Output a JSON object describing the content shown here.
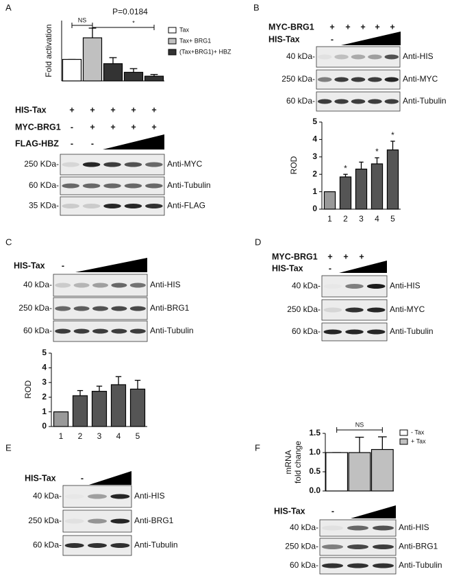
{
  "chart_data": [
    {
      "type": "bar",
      "y_label": "Fold activation",
      "categories": [
        null,
        null,
        null,
        null,
        null
      ],
      "ylim": [
        0,
        2.8
      ],
      "series": [
        {
          "name": "Tax",
          "color": "#ffffff",
          "values": [
            1,
            null,
            null,
            null,
            null
          ],
          "errors": [
            0,
            null,
            null,
            null,
            null
          ]
        },
        {
          "name": "Tax+ BRG1",
          "color": "#c0c0c0",
          "values": [
            null,
            2.0,
            null,
            null,
            null
          ],
          "errors": [
            null,
            0.45,
            null,
            null,
            null
          ]
        },
        {
          "name": "(Tax+BRG1)+ HBZ",
          "color": "#333333",
          "values": [
            null,
            null,
            0.8,
            0.4,
            0.22
          ],
          "errors": [
            null,
            null,
            0.28,
            0.17,
            0.08
          ]
        }
      ],
      "ns_label": "NS",
      "p_label": "P=0.0184",
      "sig_label": "*"
    },
    {
      "type": "bar",
      "y_label": "ROD",
      "categories": [
        "1",
        "2",
        "3",
        "4",
        "5"
      ],
      "values": [
        1,
        1.85,
        2.3,
        2.6,
        3.4
      ],
      "errors": [
        0,
        0.15,
        0.4,
        0.35,
        0.5
      ],
      "colors": [
        "#999999",
        "#555555",
        "#555555",
        "#555555",
        "#555555"
      ],
      "stars": [
        null,
        "*",
        null,
        "*",
        "*"
      ],
      "ylim": [
        0,
        5
      ],
      "yticks": [
        0,
        1,
        2,
        3,
        4,
        5
      ]
    },
    {
      "type": "bar",
      "y_label": "ROD",
      "categories": [
        "1",
        "2",
        "3",
        "4",
        "5"
      ],
      "values": [
        1,
        2.1,
        2.4,
        2.85,
        2.55
      ],
      "errors": [
        0,
        0.35,
        0.35,
        0.55,
        0.6
      ],
      "colors": [
        "#999999",
        "#555555",
        "#555555",
        "#555555",
        "#555555"
      ],
      "ylim": [
        0,
        5
      ],
      "yticks": [
        0,
        1,
        2,
        3,
        4,
        5
      ]
    },
    {
      "type": "bar",
      "y_label": [
        "mRNA",
        "fold change"
      ],
      "categories": [
        null,
        null,
        null
      ],
      "ylim": [
        0,
        1.5
      ],
      "yticks": [
        {
          "value": 0,
          "label": "0.0"
        },
        {
          "value": 0.5,
          "label": "0.5"
        },
        {
          "value": 1,
          "label": "1.0"
        },
        {
          "value": 1.5,
          "label": "1.5"
        }
      ],
      "series": [
        {
          "name": "- Tax",
          "color": "#ffffff",
          "values": [
            1,
            null,
            null
          ],
          "errors": [
            0,
            null,
            null
          ]
        },
        {
          "name": "+ Tax",
          "color": "#c0c0c0",
          "values": [
            null,
            1.0,
            1.08
          ],
          "errors": [
            null,
            0.4,
            0.33
          ]
        }
      ],
      "ns_label": "NS"
    }
  ],
  "panels": [
    {
      "letter": "A",
      "rows": [
        {
          "label": "HIS-Tax",
          "lanes": [
            "+",
            "+",
            "+",
            "+",
            "+"
          ]
        },
        {
          "label": "MYC-BRG1",
          "lanes": [
            "-",
            "+",
            "+",
            "+",
            "+"
          ]
        },
        {
          "label": "FLAG-HBZ",
          "lanes": [
            "-",
            "-"
          ]
        }
      ],
      "blots": [
        {
          "size": "250 KDa-",
          "antibody": "Anti-MYC"
        },
        {
          "size": "60 KDa-",
          "antibody": "Anti-Tubulin"
        },
        {
          "size": "35 KDa-",
          "antibody": "Anti-FLAG"
        }
      ]
    },
    {
      "letter": "B",
      "rows": [
        {
          "label": "MYC-BRG1",
          "lanes": [
            "+",
            "+",
            "+",
            "+",
            "+"
          ]
        },
        {
          "label": "HIS-Tax",
          "lanes": [
            "-"
          ]
        }
      ],
      "blots": [
        {
          "size": "40 kDa-",
          "antibody": "Anti-HIS"
        },
        {
          "size": "250 kDa-",
          "antibody": "Anti-MYC"
        },
        {
          "size": "60 kDa-",
          "antibody": "Anti-Tubulin"
        }
      ]
    },
    {
      "letter": "C",
      "rows": [
        {
          "label": "HIS-Tax",
          "lanes": [
            "-"
          ]
        }
      ],
      "blots": [
        {
          "size": "40 kDa-",
          "antibody": "Anti-HIS"
        },
        {
          "size": "250 kDa-",
          "antibody": "Anti-BRG1"
        },
        {
          "size": "60 kDa-",
          "antibody": "Anti-Tubulin"
        }
      ]
    },
    {
      "letter": "D",
      "rows": [
        {
          "label": "MYC-BRG1",
          "lanes": [
            "+",
            "+",
            "+"
          ]
        },
        {
          "label": "HIS-Tax",
          "lanes": [
            "-"
          ]
        }
      ],
      "blots": [
        {
          "size": "40 kDa-",
          "antibody": "Anti-HIS"
        },
        {
          "size": "250 kDa-",
          "antibody": "Anti-MYC"
        },
        {
          "size": "60 kDa-",
          "antibody": "Anti-Tubulin"
        }
      ]
    },
    {
      "letter": "E",
      "rows": [
        {
          "label": "HIS-Tax",
          "lanes": [
            "-"
          ]
        }
      ],
      "blots": [
        {
          "size": "40 kDa-",
          "antibody": "Anti-HIS"
        },
        {
          "size": "250 kDa-",
          "antibody": "Anti-BRG1"
        },
        {
          "size": "60 kDa-",
          "antibody": "Anti-Tubulin"
        }
      ]
    },
    {
      "letter": "F",
      "rows": [
        {
          "label": "HIS-Tax",
          "lanes": [
            "-"
          ]
        }
      ],
      "blots": [
        {
          "size": "40 kDa-",
          "antibody": "Anti-HIS"
        },
        {
          "size": "250 kDa-",
          "antibody": "Anti-BRG1"
        },
        {
          "size": "60 kDa-",
          "antibody": "Anti-Tubulin"
        }
      ]
    }
  ]
}
